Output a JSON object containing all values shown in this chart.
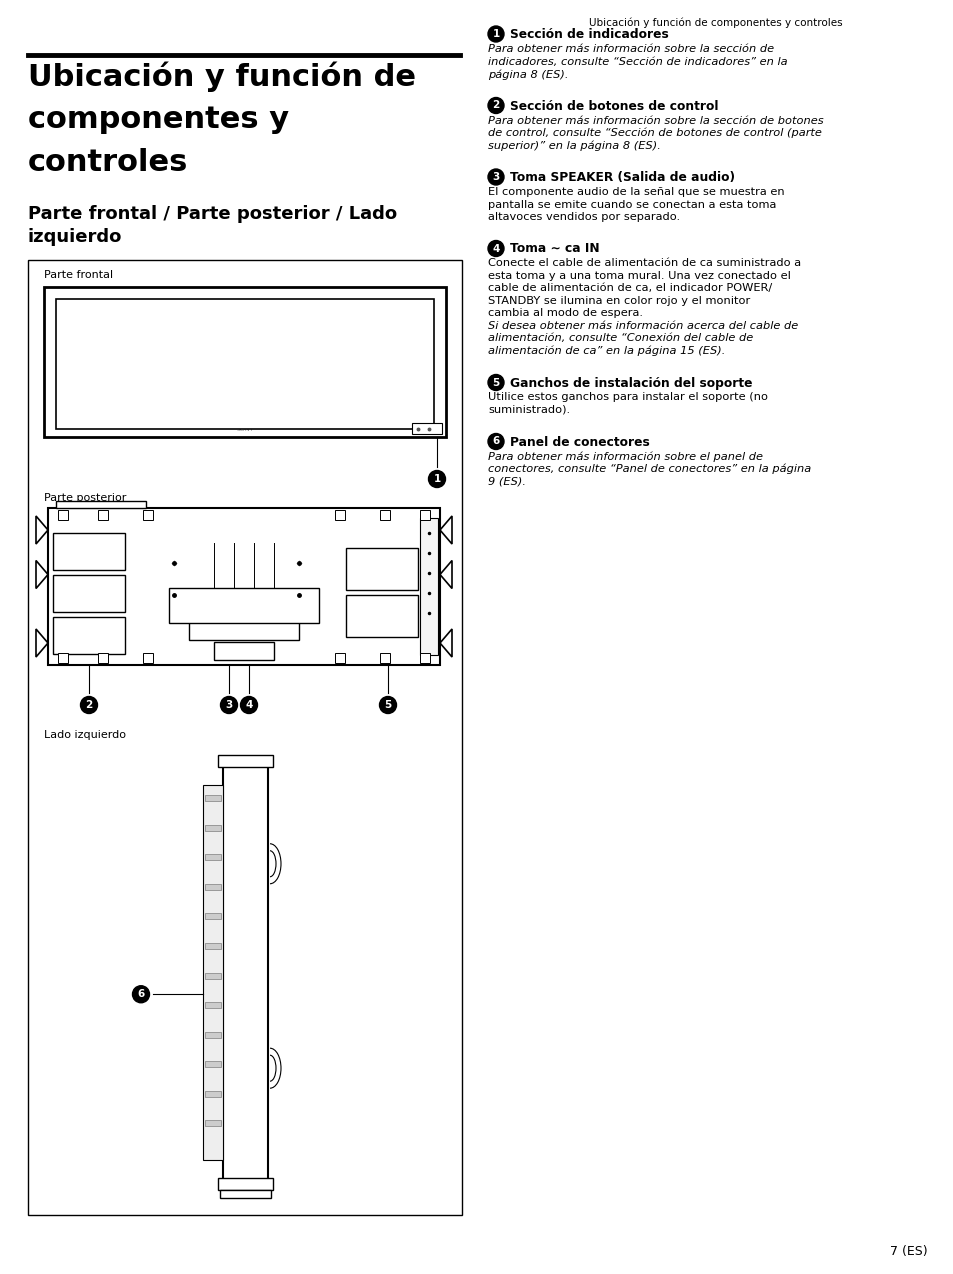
{
  "page_header": "Ubicación y función de componentes y controles",
  "main_title_line1": "Ubicación y función de",
  "main_title_line2": "componentes y",
  "main_title_line3": "controles",
  "subtitle_line1": "Parte frontal / Parte posterior / Lado",
  "subtitle_line2": "izquierdo",
  "label_parte_frontal": "Parte frontal",
  "label_parte_posterior": "Parte posterior",
  "label_lado_izquierdo": "Lado izquierdo",
  "page_number": "7 (ES)",
  "bg_color": "#ffffff",
  "text_color": "#000000"
}
